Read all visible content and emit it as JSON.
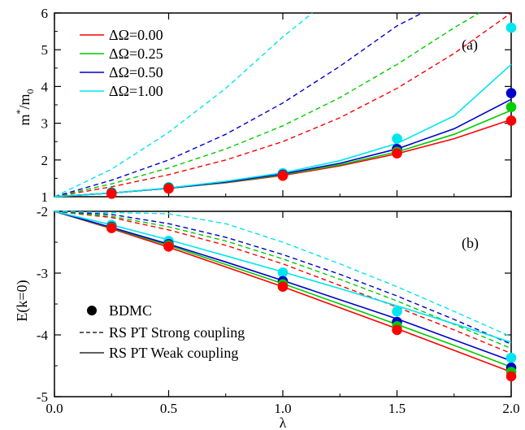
{
  "chart_data": [
    {
      "type": "line",
      "panel_label": "(a)",
      "xlabel": "",
      "ylabel": "m*/m0",
      "ylabel_main": "m",
      "ylabel_sup": "*",
      "ylabel_sep": "/m",
      "ylabel_sub": "0",
      "xlim": [
        0,
        2
      ],
      "ylim": [
        1,
        6
      ],
      "x_ticks": [
        0.0,
        0.5,
        1.0,
        1.5,
        2.0
      ],
      "y_ticks": [
        1,
        2,
        3,
        4,
        5,
        6
      ],
      "y_tick_labels": [
        "1",
        "2",
        "3",
        "4",
        "5",
        "6"
      ],
      "legend_position": "top-left",
      "series": [
        {
          "name": "ΔΩ=0.00",
          "color": "#ff0000",
          "bdmc": {
            "x": [
              0.25,
              0.5,
              1.0,
              1.5,
              2.0
            ],
            "y": [
              1.08,
              1.22,
              1.57,
              2.18,
              3.07
            ]
          },
          "strong": {
            "x": [
              0,
              0.25,
              0.5,
              0.75,
              1.0,
              1.25,
              1.5,
              1.75,
              2.0
            ],
            "y": [
              1.0,
              1.27,
              1.6,
              2.0,
              2.5,
              3.15,
              3.95,
              4.9,
              6.0
            ]
          },
          "weak": {
            "x": [
              0,
              0.25,
              0.5,
              0.75,
              1.0,
              1.25,
              1.5,
              1.75,
              2.0
            ],
            "y": [
              1.0,
              1.1,
              1.23,
              1.38,
              1.58,
              1.84,
              2.17,
              2.58,
              3.1
            ]
          }
        },
        {
          "name": "ΔΩ=0.25",
          "color": "#00cc00",
          "bdmc": {
            "x": [
              0.25,
              0.5,
              1.0,
              1.5,
              2.0
            ],
            "y": [
              1.09,
              1.23,
              1.58,
              2.22,
              3.44
            ]
          },
          "strong": {
            "x": [
              0,
              0.25,
              0.5,
              0.75,
              1.0,
              1.25,
              1.5,
              1.75,
              1.86
            ],
            "y": [
              1.0,
              1.35,
              1.78,
              2.3,
              2.93,
              3.7,
              4.6,
              5.6,
              6.0
            ]
          },
          "weak": {
            "x": [
              0,
              0.25,
              0.5,
              0.75,
              1.0,
              1.25,
              1.5,
              1.75,
              2.0
            ],
            "y": [
              1.0,
              1.1,
              1.23,
              1.39,
              1.6,
              1.87,
              2.22,
              2.7,
              3.35
            ]
          }
        },
        {
          "name": "ΔΩ=0.50",
          "color": "#0000cc",
          "bdmc": {
            "x": [
              0.25,
              0.5,
              1.0,
              1.5,
              2.0
            ],
            "y": [
              1.1,
              1.24,
              1.6,
              2.3,
              3.82
            ]
          },
          "strong": {
            "x": [
              0,
              0.25,
              0.5,
              0.75,
              1.0,
              1.25,
              1.5,
              1.61
            ],
            "y": [
              1.0,
              1.45,
              2.0,
              2.7,
              3.55,
              4.55,
              5.65,
              6.0
            ]
          },
          "weak": {
            "x": [
              0,
              0.25,
              0.5,
              0.75,
              1.0,
              1.25,
              1.5,
              1.75,
              2.0
            ],
            "y": [
              1.0,
              1.1,
              1.23,
              1.4,
              1.62,
              1.91,
              2.3,
              2.85,
              3.65
            ]
          }
        },
        {
          "name": "ΔΩ=1.00",
          "color": "#00e5ee",
          "bdmc": {
            "x": [
              0.25,
              0.5,
              1.0,
              1.5,
              2.0
            ],
            "y": [
              1.12,
              1.26,
              1.64,
              2.58,
              5.6
            ]
          },
          "strong": {
            "x": [
              0,
              0.25,
              0.5,
              0.75,
              1.0,
              1.13
            ],
            "y": [
              1.0,
              1.75,
              2.75,
              3.95,
              5.35,
              6.0
            ]
          },
          "weak": {
            "x": [
              0,
              0.25,
              0.5,
              0.75,
              1.0,
              1.25,
              1.5,
              1.75,
              2.0
            ],
            "y": [
              1.0,
              1.1,
              1.24,
              1.42,
              1.65,
              1.98,
              2.45,
              3.2,
              4.6
            ]
          }
        }
      ]
    },
    {
      "type": "line",
      "panel_label": "(b)",
      "xlabel": "λ",
      "ylabel": "E(k=0)",
      "xlim": [
        0,
        2
      ],
      "ylim": [
        -5,
        -2
      ],
      "x_ticks": [
        0.0,
        0.5,
        1.0,
        1.5,
        2.0
      ],
      "x_tick_labels": [
        "0.0",
        "0.5",
        "1.0",
        "1.5",
        "2.0"
      ],
      "y_ticks": [
        -5,
        -4,
        -3,
        -2
      ],
      "y_tick_labels": [
        "-5",
        "-4",
        "-3",
        "-2"
      ],
      "legend_position": "bottom-left",
      "legend": [
        {
          "label": "BDMC",
          "marker": "circle"
        },
        {
          "label": "RS PT Strong coupling",
          "marker": "dashed"
        },
        {
          "label": "RS PT Weak coupling",
          "marker": "solid"
        }
      ],
      "series": [
        {
          "name": "ΔΩ=0.00",
          "color": "#ff0000",
          "bdmc": {
            "x": [
              0.25,
              0.5,
              1.0,
              1.5,
              2.0
            ],
            "y": [
              -2.27,
              -2.57,
              -3.22,
              -3.92,
              -4.67
            ]
          },
          "strong": {
            "x": [
              0,
              0.25,
              0.5,
              0.75,
              1.0,
              1.25,
              1.5,
              1.75,
              2.0
            ],
            "y": [
              -2.0,
              -2.1,
              -2.3,
              -2.55,
              -2.85,
              -3.2,
              -3.55,
              -3.92,
              -4.3
            ]
          },
          "weak": {
            "x": [
              0,
              0.25,
              0.5,
              0.75,
              1.0,
              1.25,
              1.5,
              1.75,
              2.0
            ],
            "y": [
              -2.0,
              -2.28,
              -2.58,
              -2.9,
              -3.22,
              -3.56,
              -3.9,
              -4.25,
              -4.6
            ]
          }
        },
        {
          "name": "ΔΩ=0.25",
          "color": "#00cc00",
          "bdmc": {
            "x": [
              0.25,
              0.5,
              1.0,
              1.5,
              2.0
            ],
            "y": [
              -2.26,
              -2.55,
              -3.18,
              -3.86,
              -4.6
            ]
          },
          "strong": {
            "x": [
              0,
              0.25,
              0.5,
              0.75,
              1.0,
              1.25,
              1.5,
              1.75,
              2.0
            ],
            "y": [
              -2.0,
              -2.08,
              -2.25,
              -2.48,
              -2.77,
              -3.1,
              -3.45,
              -3.83,
              -4.22
            ]
          },
          "weak": {
            "x": [
              0,
              0.25,
              0.5,
              0.75,
              1.0,
              1.25,
              1.5,
              1.75,
              2.0
            ],
            "y": [
              -2.0,
              -2.27,
              -2.55,
              -2.86,
              -3.17,
              -3.5,
              -3.83,
              -4.17,
              -4.52
            ]
          }
        },
        {
          "name": "ΔΩ=0.50",
          "color": "#0000cc",
          "bdmc": {
            "x": [
              0.25,
              0.5,
              1.0,
              1.5,
              2.0
            ],
            "y": [
              -2.25,
              -2.53,
              -3.13,
              -3.79,
              -4.53
            ]
          },
          "strong": {
            "x": [
              0,
              0.25,
              0.5,
              0.75,
              1.0,
              1.25,
              1.5,
              1.75,
              2.0
            ],
            "y": [
              -2.0,
              -2.05,
              -2.2,
              -2.42,
              -2.7,
              -3.02,
              -3.37,
              -3.75,
              -4.15
            ]
          },
          "weak": {
            "x": [
              0,
              0.25,
              0.5,
              0.75,
              1.0,
              1.25,
              1.5,
              1.75,
              2.0
            ],
            "y": [
              -2.0,
              -2.26,
              -2.53,
              -2.82,
              -3.12,
              -3.43,
              -3.74,
              -4.08,
              -4.42
            ]
          }
        },
        {
          "name": "ΔΩ=1.00",
          "color": "#00e5ee",
          "bdmc": {
            "x": [
              0.25,
              0.5,
              1.0,
              1.5,
              2.0
            ],
            "y": [
              -2.22,
              -2.48,
              -2.99,
              -3.62,
              -4.37
            ]
          },
          "strong": {
            "x": [
              0,
              0.5,
              0.75,
              1.0,
              1.25,
              1.5,
              1.75,
              2.0
            ],
            "y": [
              -2.0,
              -2.04,
              -2.2,
              -2.5,
              -2.85,
              -3.22,
              -3.62,
              -4.03
            ]
          },
          "weak": {
            "x": [
              0,
              0.25,
              0.5,
              0.75,
              1.0,
              1.25,
              1.5,
              1.75,
              2.0
            ],
            "y": [
              -2.0,
              -2.22,
              -2.46,
              -2.72,
              -2.98,
              -3.25,
              -3.53,
              -3.82,
              -4.12
            ]
          }
        }
      ]
    }
  ]
}
